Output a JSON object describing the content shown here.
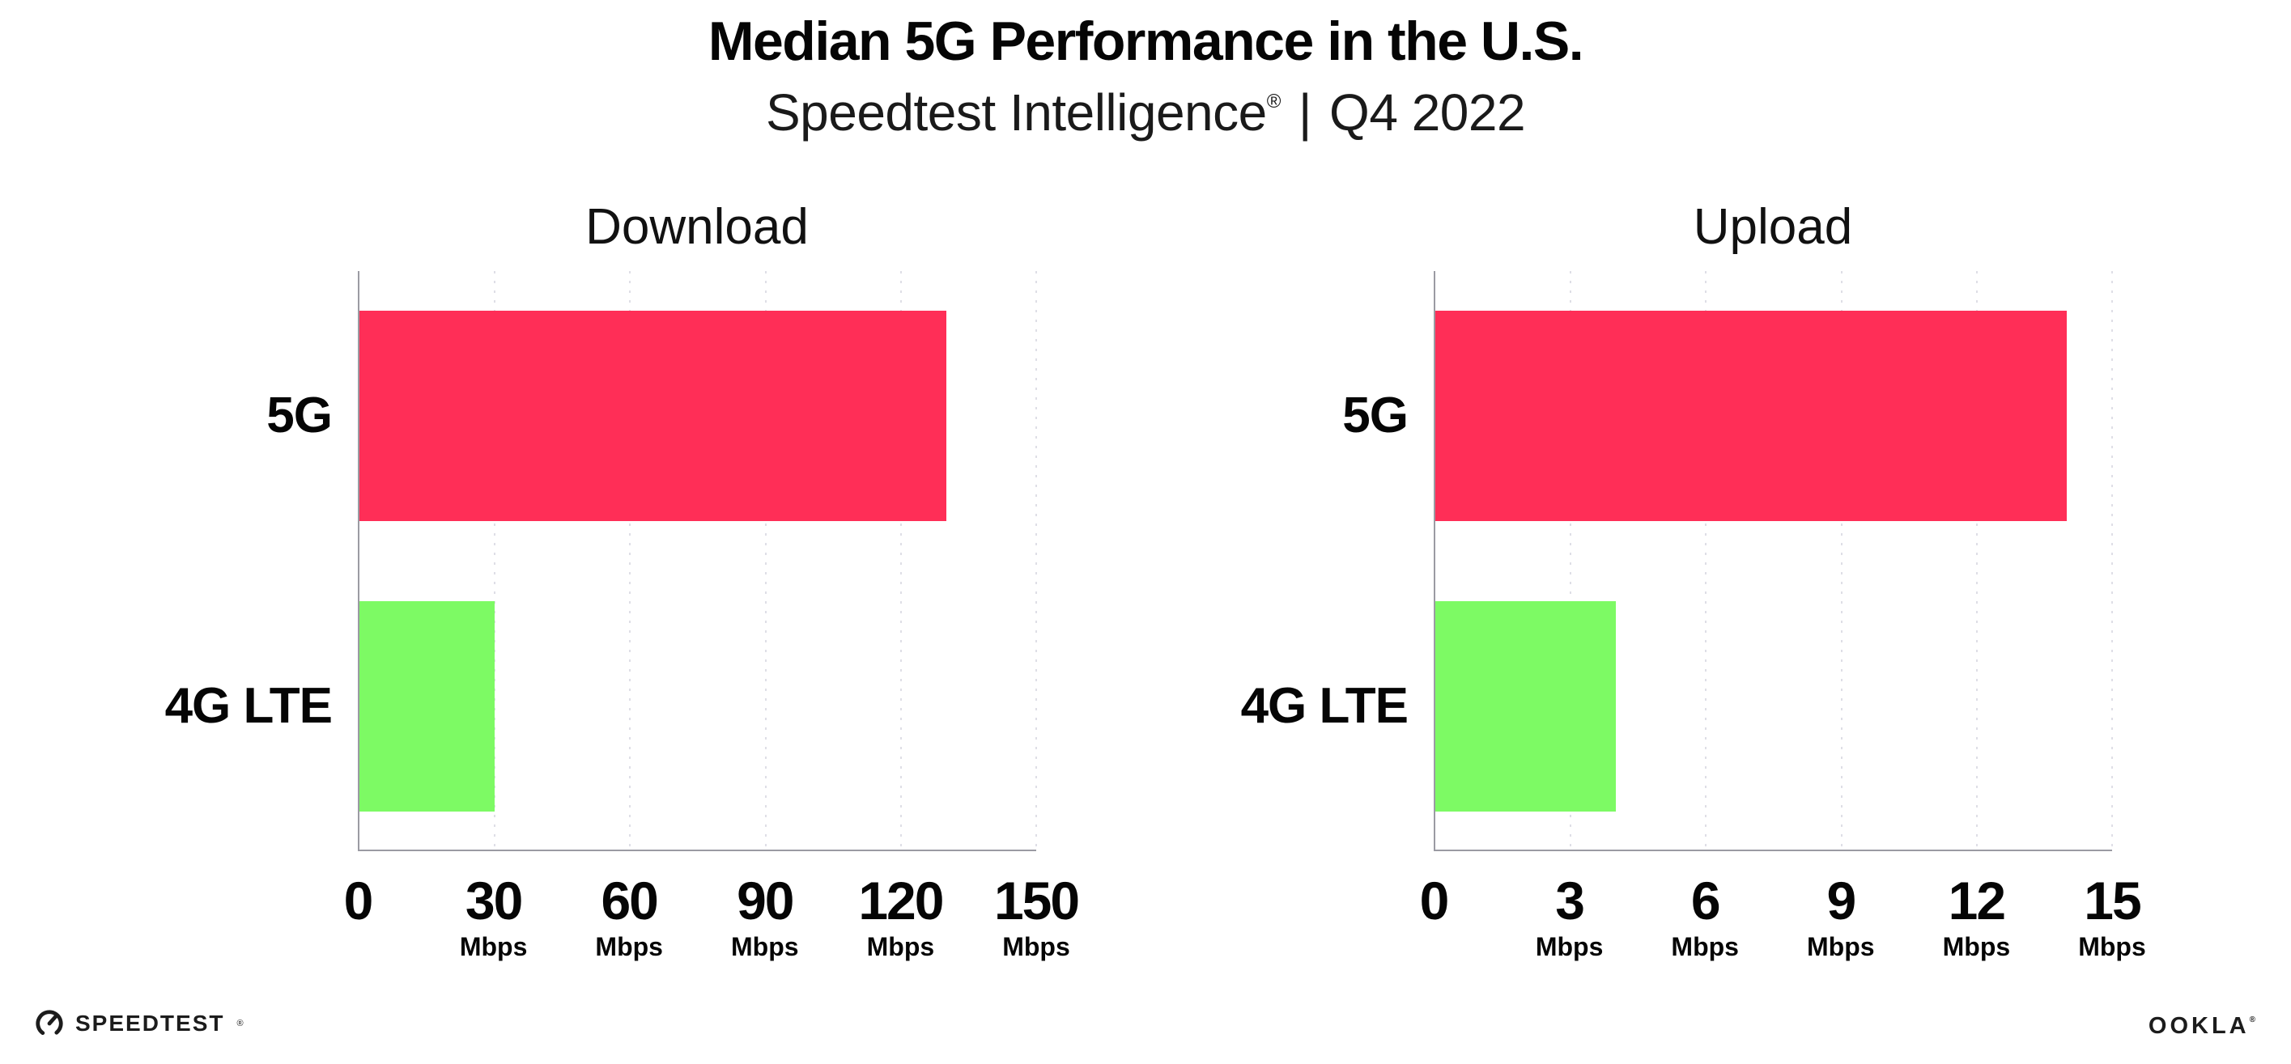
{
  "header": {
    "title": "Median 5G Performance in the U.S.",
    "subtitle_brand": "Speedtest Intelligence",
    "subtitle_reg": "®",
    "subtitle_sep": "|",
    "subtitle_period": "Q4 2022"
  },
  "chart_data": [
    {
      "type": "bar",
      "orientation": "horizontal",
      "title": "Download",
      "categories": [
        "5G",
        "4G LTE"
      ],
      "values": [
        130,
        30
      ],
      "unit": "Mbps",
      "xticks": [
        0,
        30,
        60,
        90,
        120,
        150
      ],
      "xlim": [
        0,
        150
      ],
      "bar_colors": [
        "#FF2E57",
        "#7DFA64"
      ],
      "grid": "dotted-vertical",
      "legend": "none"
    },
    {
      "type": "bar",
      "orientation": "horizontal",
      "title": "Upload",
      "categories": [
        "5G",
        "4G LTE"
      ],
      "values": [
        14,
        4
      ],
      "unit": "Mbps",
      "xticks": [
        0,
        3,
        6,
        9,
        12,
        15
      ],
      "xlim": [
        0,
        15
      ],
      "bar_colors": [
        "#FF2E57",
        "#7DFA64"
      ],
      "grid": "dotted-vertical",
      "legend": "none"
    }
  ],
  "footer": {
    "speedtest_label": "SPEEDTEST",
    "speedtest_mark": "®",
    "ookla_label": "OOKLA",
    "ookla_mark": "®"
  },
  "colors": {
    "bar_5g": "#FF2E57",
    "bar_4g_lte": "#7DFA64",
    "axis": "#9B9BA3",
    "gridline": "#DEDEE6",
    "text": "#0B0B0B"
  }
}
